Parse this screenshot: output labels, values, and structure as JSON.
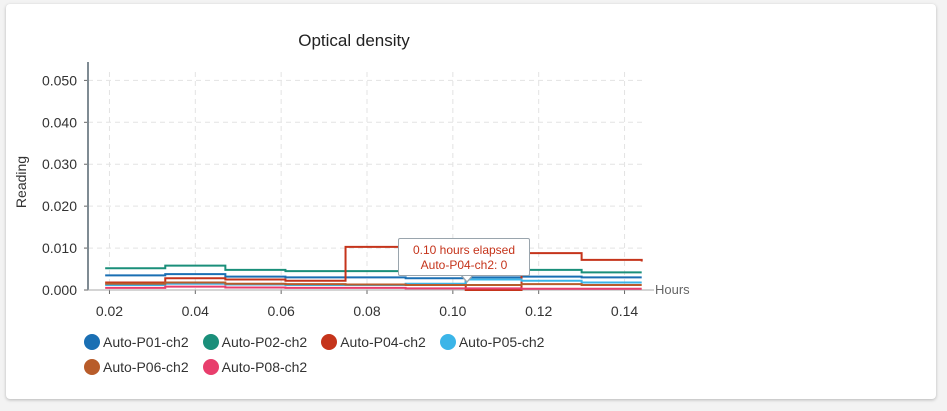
{
  "chart_data": {
    "type": "line",
    "step": true,
    "title": "Optical density",
    "xlabel": "Hours",
    "ylabel": "Reading",
    "xlim": [
      0.015,
      0.145
    ],
    "ylim": [
      0,
      0.052
    ],
    "x_ticks": [
      "0.02",
      "0.04",
      "0.06",
      "0.08",
      "0.10",
      "0.12",
      "0.14"
    ],
    "y_ticks": [
      "0.000",
      "0.010",
      "0.020",
      "0.030",
      "0.040",
      "0.050"
    ],
    "grid": true,
    "legend_position": "bottom-left",
    "series": [
      {
        "name": "Auto-P01-ch2",
        "color": "#1a6fb3",
        "x": [
          0.019,
          0.033,
          0.047,
          0.061,
          0.075,
          0.089,
          0.103,
          0.116,
          0.13,
          0.144
        ],
        "y": [
          0.0035,
          0.0038,
          0.0032,
          0.003,
          0.003,
          0.0028,
          0.003,
          0.0032,
          0.003,
          0.003
        ]
      },
      {
        "name": "Auto-P02-ch2",
        "color": "#1a8f7a",
        "x": [
          0.019,
          0.033,
          0.047,
          0.061,
          0.075,
          0.089,
          0.103,
          0.116,
          0.13,
          0.144
        ],
        "y": [
          0.0052,
          0.0058,
          0.0048,
          0.0045,
          0.0045,
          0.004,
          0.0042,
          0.0048,
          0.0042,
          0.0042
        ]
      },
      {
        "name": "Auto-P04-ch2",
        "color": "#c5341b",
        "x": [
          0.019,
          0.033,
          0.047,
          0.061,
          0.075,
          0.089,
          0.103,
          0.116,
          0.13,
          0.144
        ],
        "y": [
          0.0018,
          0.0028,
          0.0025,
          0.0022,
          0.0103,
          0.0098,
          0.0,
          0.0088,
          0.0072,
          0.0068
        ]
      },
      {
        "name": "Auto-P05-ch2",
        "color": "#3bb5e8",
        "x": [
          0.019,
          0.033,
          0.047,
          0.061,
          0.075,
          0.089,
          0.103,
          0.116,
          0.13,
          0.144
        ],
        "y": [
          0.0012,
          0.0015,
          0.0013,
          0.0012,
          0.0012,
          0.0015,
          0.0025,
          0.0022,
          0.0018,
          0.0018
        ]
      },
      {
        "name": "Auto-P06-ch2",
        "color": "#b85c2a",
        "x": [
          0.019,
          0.033,
          0.047,
          0.061,
          0.075,
          0.089,
          0.103,
          0.116,
          0.13,
          0.144
        ],
        "y": [
          0.0015,
          0.0018,
          0.0015,
          0.0014,
          0.0013,
          0.0012,
          0.0012,
          0.0014,
          0.0012,
          0.0012
        ]
      },
      {
        "name": "Auto-P08-ch2",
        "color": "#e83e6c",
        "x": [
          0.019,
          0.033,
          0.047,
          0.061,
          0.075,
          0.089,
          0.103,
          0.116,
          0.13,
          0.144
        ],
        "y": [
          0.0005,
          0.0008,
          0.0006,
          0.0005,
          0.0005,
          0.0004,
          0.0004,
          0.0003,
          0.0003,
          0.0003
        ]
      }
    ],
    "tooltip": {
      "line1": "0.10 hours elapsed",
      "line2": "Auto-P04-ch2: 0",
      "x": 0.103,
      "y": 0.0
    }
  }
}
